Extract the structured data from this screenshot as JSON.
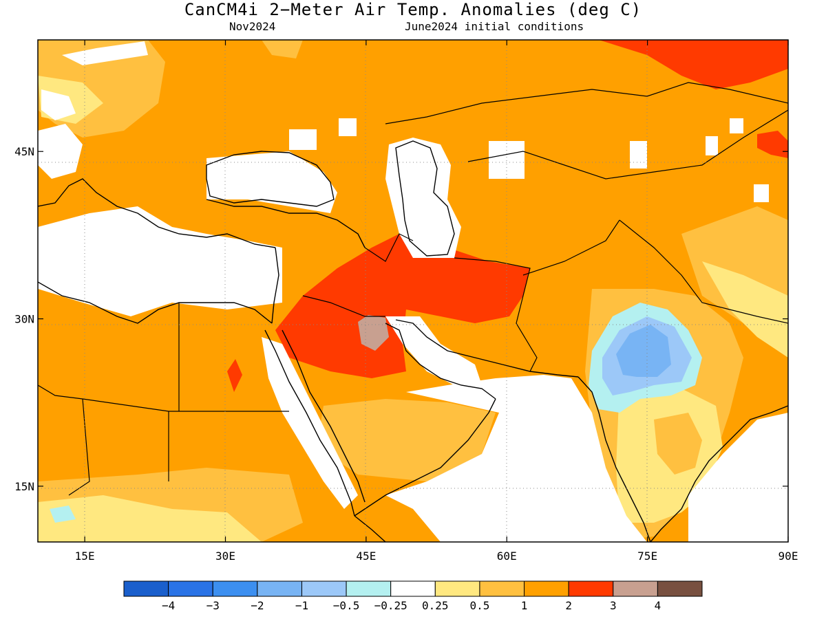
{
  "title": "CanCM4i 2−Meter Air Temp. Anomalies (deg C)",
  "subtitle_left": "Nov2024",
  "subtitle_right": "June2024 initial conditions",
  "map": {
    "lon_range": [
      10,
      90
    ],
    "lat_range": [
      10,
      55
    ],
    "lon_ticks": [
      {
        "value": 15,
        "label": "15E"
      },
      {
        "value": 30,
        "label": "30E"
      },
      {
        "value": 45,
        "label": "45E"
      },
      {
        "value": 60,
        "label": "60E"
      },
      {
        "value": 75,
        "label": "75E"
      },
      {
        "value": 90,
        "label": "90E"
      }
    ],
    "lat_ticks": [
      {
        "value": 45,
        "label": "45N"
      },
      {
        "value": 30,
        "label": "30N"
      },
      {
        "value": 15,
        "label": "15N"
      }
    ],
    "gridlines": "dotted"
  },
  "colorbar": {
    "colors": [
      "#1a5fcc",
      "#2a73e6",
      "#3c8ff0",
      "#78b4f4",
      "#9cc8f8",
      "#b4f0f0",
      "#ffffff",
      "#ffe880",
      "#ffc040",
      "#ffa000",
      "#ff3a00",
      "#c8a090",
      "#785040"
    ],
    "labels": [
      "−4",
      "−3",
      "−2",
      "−1",
      "−0.5",
      "−0.25",
      "0.25",
      "0.5",
      "1",
      "2",
      "3",
      "4"
    ]
  }
}
